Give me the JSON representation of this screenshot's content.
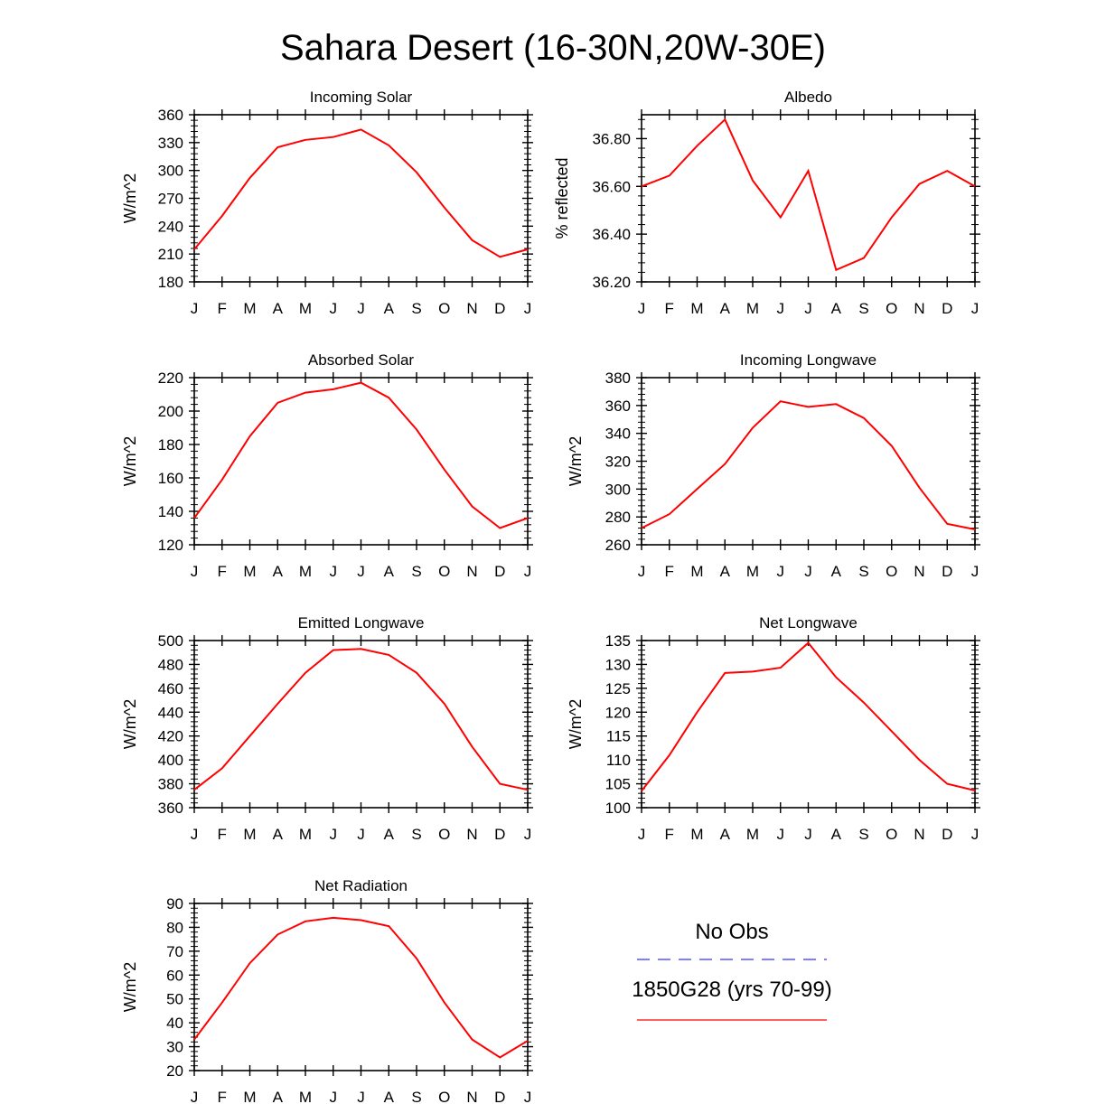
{
  "figure_title": "Sahara Desert (16-30N,20W-30E)",
  "legend": {
    "obs_label": "No Obs",
    "obs_color": "#3333ff",
    "model_label": "1850G28 (yrs 70-99)",
    "model_color": "#ff0000"
  },
  "chart_data": [
    {
      "type": "line",
      "title": "Incoming Solar",
      "xlabel": "",
      "ylabel": "W/m^2",
      "categories": [
        "J",
        "F",
        "M",
        "A",
        "M",
        "J",
        "J",
        "A",
        "S",
        "O",
        "N",
        "D",
        "J"
      ],
      "ylim": [
        180,
        360
      ],
      "yticks": [
        "180",
        "210",
        "240",
        "270",
        "300",
        "330",
        "360"
      ],
      "series": [
        {
          "name": "1850G28 (yrs 70-99)",
          "values": [
            215,
            251,
            292,
            325,
            333,
            336,
            344,
            327,
            298,
            260,
            225,
            207,
            215
          ]
        }
      ]
    },
    {
      "type": "line",
      "title": "Albedo",
      "xlabel": "",
      "ylabel": "% reflected",
      "categories": [
        "J",
        "F",
        "M",
        "A",
        "M",
        "J",
        "J",
        "A",
        "S",
        "O",
        "N",
        "D",
        "J"
      ],
      "ylim": [
        36.2,
        36.9
      ],
      "yticks": [
        "36.20",
        "36.40",
        "36.60",
        "36.80"
      ],
      "series": [
        {
          "name": "1850G28 (yrs 70-99)",
          "values": [
            36.6,
            36.645,
            36.77,
            36.88,
            36.625,
            36.47,
            36.665,
            36.25,
            36.3,
            36.47,
            36.61,
            36.665,
            36.6
          ]
        }
      ]
    },
    {
      "type": "line",
      "title": "Absorbed Solar",
      "xlabel": "",
      "ylabel": "W/m^2",
      "categories": [
        "J",
        "F",
        "M",
        "A",
        "M",
        "J",
        "J",
        "A",
        "S",
        "O",
        "N",
        "D",
        "J"
      ],
      "ylim": [
        120,
        220
      ],
      "yticks": [
        "120",
        "140",
        "160",
        "180",
        "200",
        "220"
      ],
      "series": [
        {
          "name": "1850G28 (yrs 70-99)",
          "values": [
            136,
            159,
            185,
            205,
            211,
            213,
            217,
            208,
            189,
            165,
            143,
            130,
            136
          ]
        }
      ]
    },
    {
      "type": "line",
      "title": "Incoming Longwave",
      "xlabel": "",
      "ylabel": "W/m^2",
      "categories": [
        "J",
        "F",
        "M",
        "A",
        "M",
        "J",
        "J",
        "A",
        "S",
        "O",
        "N",
        "D",
        "J"
      ],
      "ylim": [
        260,
        380
      ],
      "yticks": [
        "260",
        "280",
        "300",
        "320",
        "340",
        "360",
        "380"
      ],
      "series": [
        {
          "name": "1850G28 (yrs 70-99)",
          "values": [
            272,
            282,
            300,
            318,
            344,
            363,
            359,
            361,
            351,
            331,
            301,
            275,
            271
          ]
        }
      ]
    },
    {
      "type": "line",
      "title": "Emitted Longwave",
      "xlabel": "",
      "ylabel": "W/m^2",
      "categories": [
        "J",
        "F",
        "M",
        "A",
        "M",
        "J",
        "J",
        "A",
        "S",
        "O",
        "N",
        "D",
        "J"
      ],
      "ylim": [
        360,
        500
      ],
      "yticks": [
        "360",
        "380",
        "400",
        "420",
        "440",
        "460",
        "480",
        "500"
      ],
      "series": [
        {
          "name": "1850G28 (yrs 70-99)",
          "values": [
            375,
            393,
            420,
            447,
            473,
            492,
            493,
            488,
            473,
            447,
            411,
            380,
            375
          ]
        }
      ]
    },
    {
      "type": "line",
      "title": "Net Longwave",
      "xlabel": "",
      "ylabel": "W/m^2",
      "categories": [
        "J",
        "F",
        "M",
        "A",
        "M",
        "J",
        "J",
        "A",
        "S",
        "O",
        "N",
        "D",
        "J"
      ],
      "ylim": [
        100,
        135
      ],
      "yticks": [
        "100",
        "105",
        "110",
        "115",
        "120",
        "125",
        "130",
        "135"
      ],
      "series": [
        {
          "name": "1850G28 (yrs 70-99)",
          "values": [
            103.5,
            111,
            120,
            128.2,
            128.5,
            129.3,
            134.5,
            127.3,
            122,
            116,
            110,
            105,
            103.6
          ]
        }
      ]
    },
    {
      "type": "line",
      "title": "Net Radiation",
      "xlabel": "",
      "ylabel": "W/m^2",
      "categories": [
        "J",
        "F",
        "M",
        "A",
        "M",
        "J",
        "J",
        "A",
        "S",
        "O",
        "N",
        "D",
        "J"
      ],
      "ylim": [
        20,
        90
      ],
      "yticks": [
        "20",
        "30",
        "40",
        "50",
        "60",
        "70",
        "80",
        "90"
      ],
      "series": [
        {
          "name": "1850G28 (yrs 70-99)",
          "values": [
            33,
            48.5,
            65,
            77,
            82.5,
            84,
            83,
            80.5,
            67,
            48.5,
            33,
            25.5,
            32.5
          ]
        }
      ]
    }
  ]
}
